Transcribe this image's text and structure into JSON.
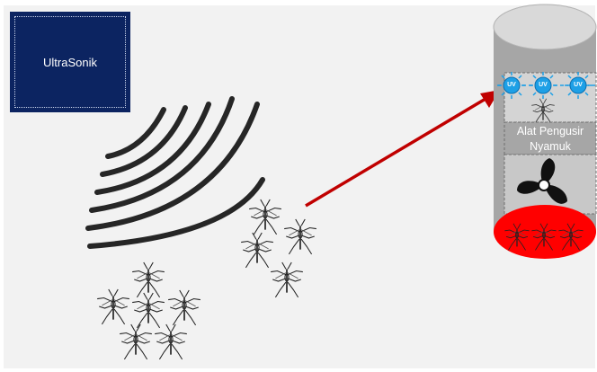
{
  "ultrasonic": {
    "label": "UltraSonik"
  },
  "device": {
    "label_line1": "Alat Pengusir",
    "label_line2": "Nyamuk",
    "uv_lamps": [
      "UV",
      "UV",
      "UV"
    ]
  },
  "colors": {
    "ultrasonic_box": "#0c2461",
    "arrow": "#c00000",
    "trap_base": "#ff0000",
    "uv_lamp": "#1ea0e6",
    "cylinder": "#a6a6a6",
    "waves": "#262626"
  },
  "icons": [
    "sound-wave-icon",
    "mosquito-icon",
    "fan-icon",
    "uv-lamp-icon",
    "arrow-icon"
  ]
}
